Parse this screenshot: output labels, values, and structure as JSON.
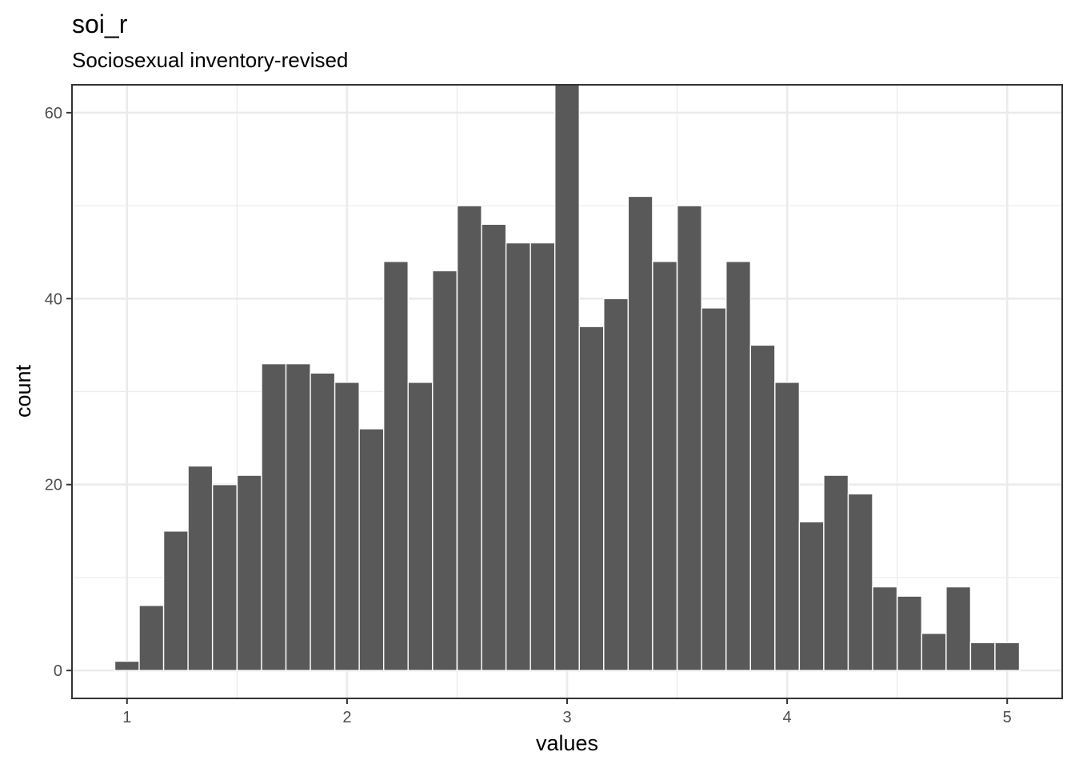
{
  "chart_data": {
    "type": "bar",
    "title": "soi_r",
    "subtitle": "Sociosexual inventory-revised",
    "xlabel": "values",
    "ylabel": "count",
    "xlim": [
      0.75,
      5.25
    ],
    "ylim": [
      -3,
      63
    ],
    "x_ticks": [
      1,
      2,
      3,
      4,
      5
    ],
    "y_ticks": [
      0,
      20,
      40,
      60
    ],
    "x_tick_labels": [
      "1",
      "2",
      "3",
      "4",
      "5"
    ],
    "y_tick_labels": [
      "0",
      "20",
      "40",
      "60"
    ],
    "grid": true,
    "bar_color": "#595959",
    "bar_outline": "#ffffff",
    "bin_width": 0.1111,
    "bins": [
      {
        "x": 1.0,
        "count": 1
      },
      {
        "x": 1.111,
        "count": 7
      },
      {
        "x": 1.222,
        "count": 15
      },
      {
        "x": 1.333,
        "count": 22
      },
      {
        "x": 1.444,
        "count": 20
      },
      {
        "x": 1.556,
        "count": 21
      },
      {
        "x": 1.667,
        "count": 33
      },
      {
        "x": 1.778,
        "count": 33
      },
      {
        "x": 1.889,
        "count": 32
      },
      {
        "x": 2.0,
        "count": 31
      },
      {
        "x": 2.111,
        "count": 26
      },
      {
        "x": 2.222,
        "count": 44
      },
      {
        "x": 2.333,
        "count": 31
      },
      {
        "x": 2.444,
        "count": 43
      },
      {
        "x": 2.556,
        "count": 50
      },
      {
        "x": 2.667,
        "count": 48
      },
      {
        "x": 2.778,
        "count": 46
      },
      {
        "x": 2.889,
        "count": 46
      },
      {
        "x": 3.0,
        "count": 63
      },
      {
        "x": 3.111,
        "count": 37
      },
      {
        "x": 3.222,
        "count": 40
      },
      {
        "x": 3.333,
        "count": 51
      },
      {
        "x": 3.444,
        "count": 44
      },
      {
        "x": 3.556,
        "count": 50
      },
      {
        "x": 3.667,
        "count": 39
      },
      {
        "x": 3.778,
        "count": 44
      },
      {
        "x": 3.889,
        "count": 35
      },
      {
        "x": 4.0,
        "count": 31
      },
      {
        "x": 4.111,
        "count": 16
      },
      {
        "x": 4.222,
        "count": 21
      },
      {
        "x": 4.333,
        "count": 19
      },
      {
        "x": 4.444,
        "count": 9
      },
      {
        "x": 4.556,
        "count": 8
      },
      {
        "x": 4.667,
        "count": 4
      },
      {
        "x": 4.778,
        "count": 9
      },
      {
        "x": 4.889,
        "count": 3
      },
      {
        "x": 5.0,
        "count": 3
      }
    ]
  }
}
